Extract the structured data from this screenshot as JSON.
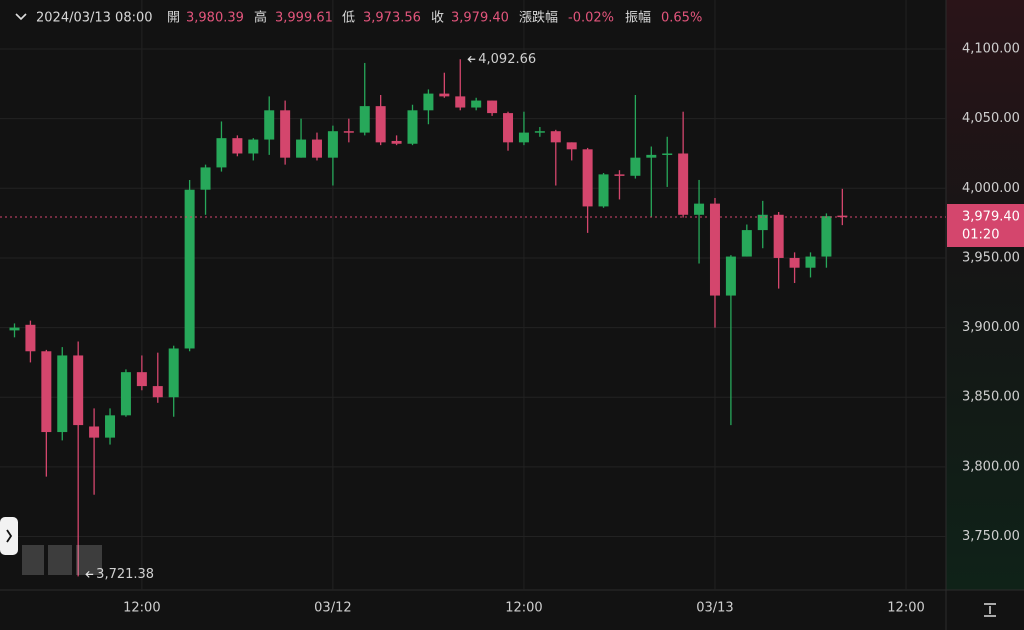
{
  "header": {
    "date": "2024/03/13 08:00",
    "open_label": "開",
    "open": "3,980.39",
    "high_label": "高",
    "high": "3,999.61",
    "low_label": "低",
    "low": "3,973.56",
    "close_label": "收",
    "close": "3,979.40",
    "change_label": "漲跌幅",
    "change": "-0.02%",
    "amplitude_label": "振幅",
    "amplitude": "0.65%"
  },
  "chart_data": {
    "type": "candlestick",
    "categories": [
      null,
      null,
      null,
      null,
      null,
      null,
      null,
      null,
      "12:00",
      null,
      null,
      null,
      null,
      null,
      null,
      null,
      null,
      null,
      null,
      null,
      "03/12",
      null,
      null,
      null,
      null,
      null,
      null,
      null,
      null,
      null,
      null,
      null,
      "12:00",
      null,
      null,
      null,
      null,
      null,
      null,
      null,
      null,
      null,
      null,
      null,
      "03/13",
      null,
      null,
      null,
      null,
      null,
      null,
      null,
      null,
      null,
      null,
      null,
      "12:00",
      null,
      null
    ],
    "open": [
      3898,
      3902,
      3883,
      3825,
      3880,
      3829,
      3821,
      3837,
      3868,
      3858,
      3850,
      3885,
      3999,
      4015,
      4036,
      4025,
      4035,
      4056,
      4022,
      4035,
      4022,
      4041,
      4040,
      4059,
      4034,
      4032,
      4056,
      4068,
      4066,
      4058,
      4063,
      4054,
      4033,
      4040,
      4041,
      4033,
      4028,
      3987,
      4010,
      4009,
      4022,
      4024,
      4025,
      3981,
      3989,
      3923,
      3951,
      3970,
      3981,
      3950,
      3943,
      3951,
      3980.39,
      null,
      null,
      null,
      null,
      null,
      null
    ],
    "high": [
      3903,
      3905,
      3884,
      3886,
      3890,
      3842,
      3842,
      3870,
      3880,
      3882,
      3887,
      4006,
      4017,
      4048,
      4038,
      4036,
      4066,
      4063,
      4050,
      4040,
      4045,
      4050,
      4090,
      4067,
      4038,
      4060,
      4071,
      4083,
      4092.66,
      4065,
      4063,
      4055,
      4055,
      4044,
      4042,
      4033,
      4029,
      4011,
      4013,
      4067,
      4030,
      4037,
      4055,
      4006,
      3993,
      3952,
      3974,
      3991,
      3983,
      3954,
      3954,
      3982,
      3999.61,
      null,
      null,
      null,
      null,
      null,
      null
    ],
    "low": [
      3893,
      3875,
      3793,
      3819,
      3721.38,
      3780,
      3816,
      3836,
      3855,
      3846,
      3836,
      3883,
      3981,
      4012,
      4023,
      4020,
      4024,
      4017,
      4022,
      4020,
      4002,
      4033,
      4038,
      4031,
      4031,
      4031,
      4046,
      4065,
      4056,
      4056,
      4052,
      4027,
      4031,
      4037,
      4002,
      4020,
      3968,
      3986,
      3992,
      4007,
      3979,
      4001,
      3979,
      3946,
      3900,
      3830,
      3951,
      3957,
      3928,
      3932,
      3936,
      3943,
      3973.56,
      null,
      null,
      null,
      null,
      null,
      null
    ],
    "close": [
      3900,
      3883,
      3825,
      3880,
      3830,
      3821,
      3837,
      3868,
      3858,
      3850,
      3885,
      3999,
      4015,
      4036,
      4025,
      4035,
      4056,
      4022,
      4035,
      4022,
      4041,
      4040,
      4059,
      4033,
      4032,
      4056,
      4068,
      4066,
      4058,
      4063,
      4054,
      4033,
      4040,
      4041,
      4033,
      4028,
      3987,
      4010,
      4009,
      4022,
      4024,
      4025,
      3981,
      3989,
      3923,
      3951,
      3970,
      3981,
      3950,
      3943,
      3951,
      3980,
      3979.4,
      null,
      null,
      null,
      null,
      null,
      null
    ],
    "up_color": "#27a85a",
    "down_color": "#d4466d",
    "ylim": [
      3711.6,
      4135.2
    ],
    "yticks": [
      {
        "value": 3750,
        "label": "3,750.00"
      },
      {
        "value": 3800,
        "label": "3,800.00"
      },
      {
        "value": 3850,
        "label": "3,850.00"
      },
      {
        "value": 3900,
        "label": "3,900.00"
      },
      {
        "value": 3950,
        "label": "3,950.00"
      },
      {
        "value": 4000,
        "label": "4,000.00"
      },
      {
        "value": 4050,
        "label": "4,050.00"
      },
      {
        "value": 4100,
        "label": "4,100.00"
      }
    ],
    "grid": true,
    "max_label": "4,092.66",
    "min_label": "3,721.38",
    "last_price_label": "3,979.40",
    "countdown": "01:20"
  }
}
